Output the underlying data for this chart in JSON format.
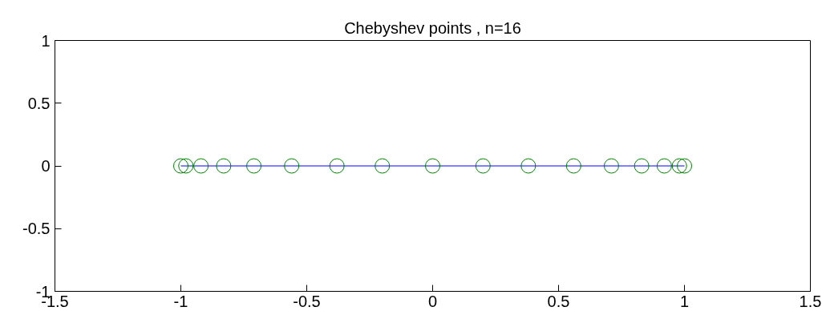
{
  "chart_data": {
    "type": "scatter",
    "title": "Chebyshev points , n=16",
    "series": [
      {
        "type": "line",
        "color": "#0000ff",
        "x": [
          -1,
          1
        ],
        "values": [
          0,
          0
        ],
        "marker": "none"
      },
      {
        "color": "#008000",
        "marker": "circle",
        "x": [
          -1,
          -0.98,
          -0.92,
          -0.83,
          -0.71,
          -0.56,
          -0.38,
          -0.2,
          0,
          0.2,
          0.38,
          0.56,
          0.71,
          0.83,
          0.92,
          0.98,
          1
        ],
        "values": [
          0,
          0,
          0,
          0,
          0,
          0,
          0,
          0,
          0,
          0,
          0,
          0,
          0,
          0,
          0,
          0,
          0
        ]
      }
    ],
    "xlim": [
      -1.5,
      1.5
    ],
    "ylim": [
      -1,
      1
    ],
    "xticks": [
      -1.5,
      -1,
      -0.5,
      0,
      0.5,
      1,
      1.5
    ],
    "yticks": [
      -1,
      -0.5,
      0,
      0.5,
      1
    ],
    "grid": false
  }
}
